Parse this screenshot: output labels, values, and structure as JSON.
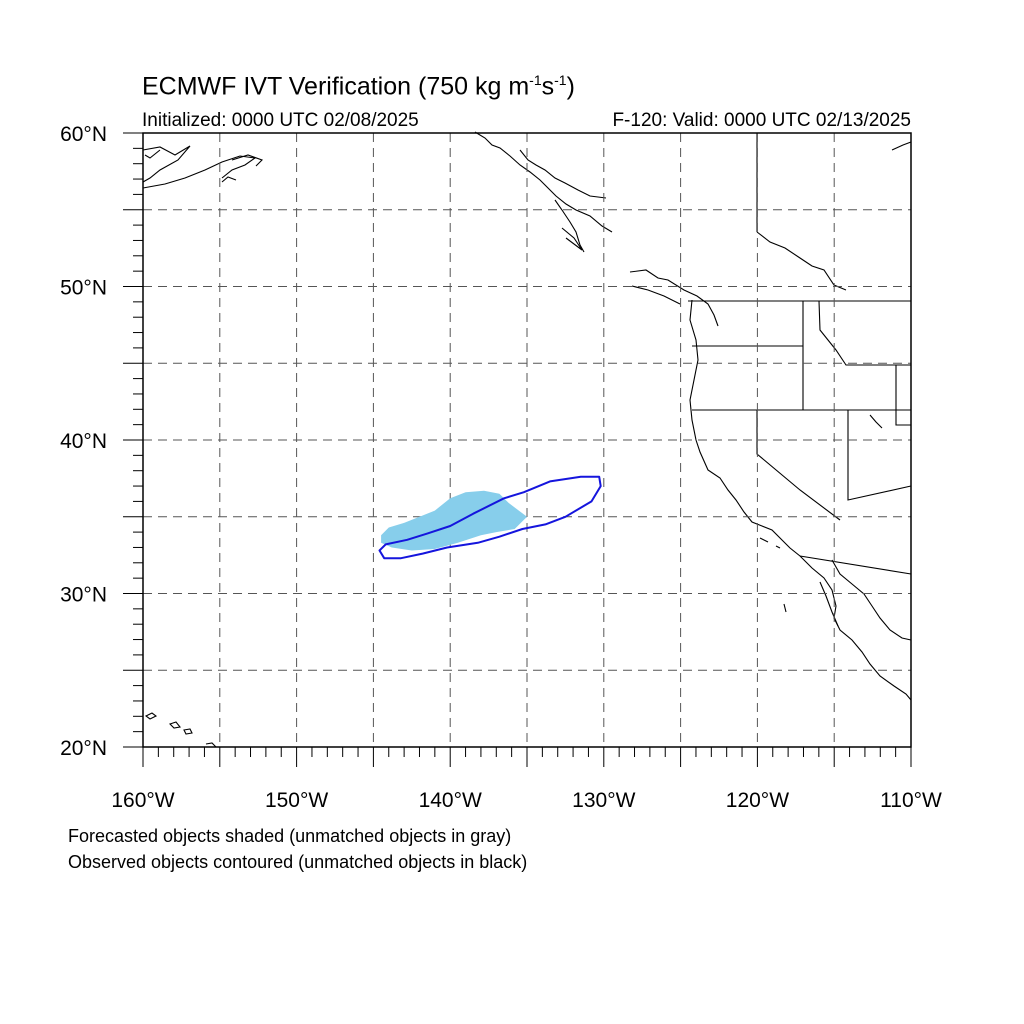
{
  "header": {
    "title_main": "ECMWF IVT Verification (750 kg m",
    "title_exp1": "-1",
    "title_mid": "s",
    "title_exp2": "-1",
    "title_end": ")",
    "initialized": "Initialized: 0000 UTC 02/08/2025",
    "valid": "F-120: Valid: 0000 UTC 02/13/2025"
  },
  "map": {
    "lon_range": [
      -160,
      -110
    ],
    "lat_range": [
      20,
      60
    ],
    "grid_lons": [
      -155,
      -150,
      -145,
      -140,
      -135,
      -130,
      -125,
      -120,
      -115
    ],
    "grid_lats": [
      25,
      30,
      35,
      40,
      45,
      50,
      55
    ],
    "lat_labels": [
      {
        "lat": 60,
        "text": "60°N"
      },
      {
        "lat": 50,
        "text": "50°N"
      },
      {
        "lat": 40,
        "text": "40°N"
      },
      {
        "lat": 30,
        "text": "30°N"
      },
      {
        "lat": 20,
        "text": "20°N"
      }
    ],
    "lon_labels": [
      {
        "lon": -160,
        "text": "160°W"
      },
      {
        "lon": -150,
        "text": "150°W"
      },
      {
        "lon": -140,
        "text": "140°W"
      },
      {
        "lon": -130,
        "text": "130°W"
      },
      {
        "lon": -120,
        "text": "120°W"
      },
      {
        "lon": -110,
        "text": "110°W"
      }
    ],
    "colors": {
      "forecast_fill": "#87ceeb",
      "observed_contour": "#1515dd",
      "coast": "#000000",
      "grid": "#555555"
    },
    "forecast_object": [
      [
        -144.5,
        33.8
      ],
      [
        -144.0,
        34.3
      ],
      [
        -143.0,
        34.6
      ],
      [
        -142.0,
        35.0
      ],
      [
        -141.0,
        35.4
      ],
      [
        -140.0,
        36.2
      ],
      [
        -139.0,
        36.6
      ],
      [
        -137.8,
        36.7
      ],
      [
        -136.8,
        36.5
      ],
      [
        -136.2,
        35.9
      ],
      [
        -135.8,
        35.6
      ],
      [
        -135.0,
        35.0
      ],
      [
        -135.8,
        34.2
      ],
      [
        -137.0,
        34.0
      ],
      [
        -138.0,
        33.8
      ],
      [
        -139.5,
        33.3
      ],
      [
        -141.0,
        32.9
      ],
      [
        -142.5,
        32.8
      ],
      [
        -143.8,
        33.0
      ],
      [
        -144.5,
        33.3
      ]
    ],
    "observed_object": [
      [
        -144.2,
        33.2
      ],
      [
        -142.8,
        33.5
      ],
      [
        -141.5,
        33.9
      ],
      [
        -140.0,
        34.4
      ],
      [
        -138.5,
        35.2
      ],
      [
        -136.5,
        36.2
      ],
      [
        -135.2,
        36.6
      ],
      [
        -133.5,
        37.3
      ],
      [
        -131.5,
        37.6
      ],
      [
        -130.3,
        37.6
      ],
      [
        -130.2,
        37.0
      ],
      [
        -130.8,
        36.0
      ],
      [
        -132.5,
        35.0
      ],
      [
        -133.8,
        34.5
      ],
      [
        -135.3,
        34.2
      ],
      [
        -136.8,
        33.7
      ],
      [
        -138.2,
        33.3
      ],
      [
        -140.2,
        33.0
      ],
      [
        -141.8,
        32.6
      ],
      [
        -143.2,
        32.3
      ],
      [
        -144.3,
        32.3
      ],
      [
        -144.6,
        32.8
      ]
    ]
  },
  "notes": {
    "line1": "Forecasted objects shaded (unmatched objects in gray)",
    "line2": "Observed objects contoured (unmatched objects in black)"
  }
}
